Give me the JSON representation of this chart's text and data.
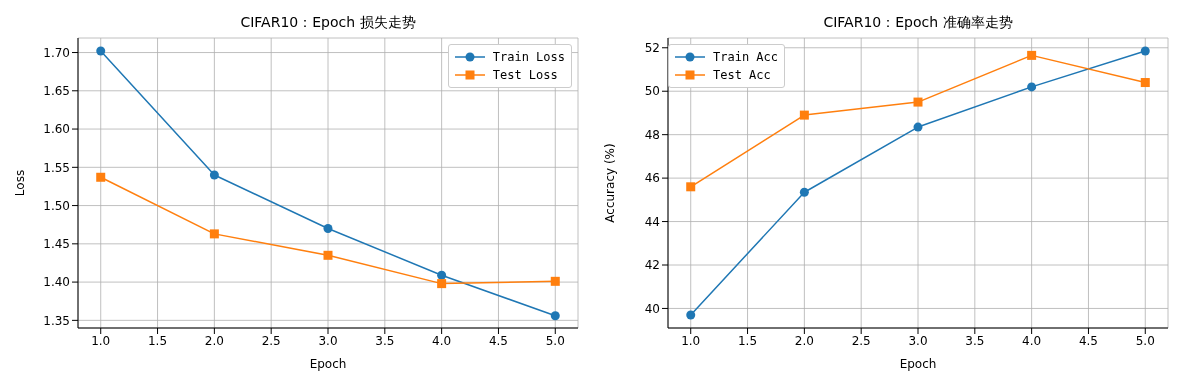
{
  "chart_data": [
    {
      "type": "line",
      "title": "CIFAR10：Epoch 损失走势",
      "xlabel": "Epoch",
      "ylabel": "Loss",
      "x": [
        1,
        2,
        3,
        4,
        5
      ],
      "xlim": [
        0.8,
        5.2
      ],
      "xticks": [
        {
          "value": 1,
          "label": "1.0"
        },
        {
          "value": 1.5,
          "label": "1.5"
        },
        {
          "value": 2,
          "label": "2.0"
        },
        {
          "value": 2.5,
          "label": "2.5"
        },
        {
          "value": 3,
          "label": "3.0"
        },
        {
          "value": 3.5,
          "label": "3.5"
        },
        {
          "value": 4,
          "label": "4.0"
        },
        {
          "value": 4.5,
          "label": "4.5"
        },
        {
          "value": 5,
          "label": "5.0"
        }
      ],
      "ylim": [
        1.34,
        1.719
      ],
      "yticks": [
        {
          "value": 1.35,
          "label": "1.35"
        },
        {
          "value": 1.4,
          "label": "1.40"
        },
        {
          "value": 1.45,
          "label": "1.45"
        },
        {
          "value": 1.5,
          "label": "1.50"
        },
        {
          "value": 1.55,
          "label": "1.55"
        },
        {
          "value": 1.6,
          "label": "1.60"
        },
        {
          "value": 1.65,
          "label": "1.65"
        },
        {
          "value": 1.7,
          "label": "1.70"
        }
      ],
      "grid": true,
      "legend": "top right",
      "series": [
        {
          "name": "Train Loss",
          "color": "#1f77b4",
          "marker": "circle",
          "values": [
            1.702,
            1.54,
            1.47,
            1.409,
            1.356
          ]
        },
        {
          "name": "Test Loss",
          "color": "#ff7f0e",
          "marker": "square",
          "values": [
            1.537,
            1.463,
            1.435,
            1.398,
            1.401
          ]
        }
      ]
    },
    {
      "type": "line",
      "title": "CIFAR10：Epoch 准确率走势",
      "xlabel": "Epoch",
      "ylabel": "Accuracy (%)",
      "x": [
        1,
        2,
        3,
        4,
        5
      ],
      "xlim": [
        0.8,
        5.2
      ],
      "xticks": [
        {
          "value": 1,
          "label": "1.0"
        },
        {
          "value": 1.5,
          "label": "1.5"
        },
        {
          "value": 2,
          "label": "2.0"
        },
        {
          "value": 2.5,
          "label": "2.5"
        },
        {
          "value": 3,
          "label": "3.0"
        },
        {
          "value": 3.5,
          "label": "3.5"
        },
        {
          "value": 4,
          "label": "4.0"
        },
        {
          "value": 4.5,
          "label": "4.5"
        },
        {
          "value": 5,
          "label": "5.0"
        }
      ],
      "ylim": [
        39.1,
        52.45
      ],
      "yticks": [
        40,
        42,
        44,
        46,
        48,
        50,
        52
      ],
      "grid": true,
      "legend": "top left",
      "series": [
        {
          "name": "Train Acc",
          "color": "#1f77b4",
          "marker": "circle",
          "values": [
            39.7,
            45.35,
            48.35,
            50.2,
            51.85
          ]
        },
        {
          "name": "Test Acc",
          "color": "#ff7f0e",
          "marker": "square",
          "values": [
            45.6,
            48.9,
            49.5,
            51.65,
            50.4
          ]
        }
      ]
    }
  ]
}
